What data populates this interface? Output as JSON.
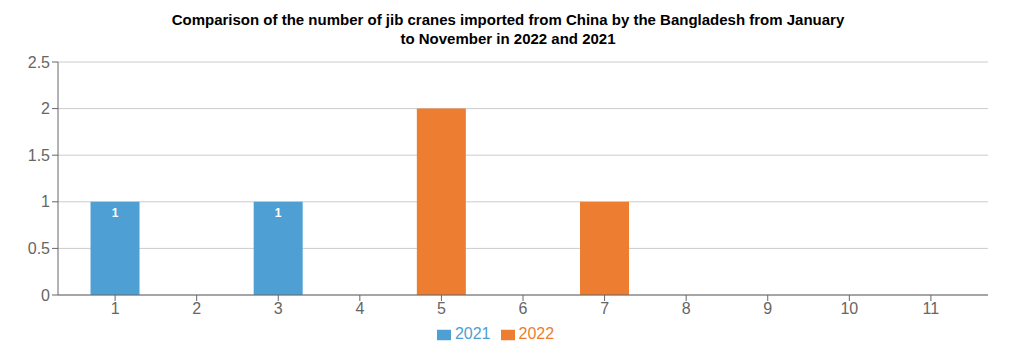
{
  "chart_data": {
    "type": "bar",
    "title": "Comparison of the number of jib cranes imported from China by the Bangladesh from January\nto November in 2022 and 2021",
    "x": [
      1,
      3,
      5,
      7
    ],
    "series": [
      {
        "name": "2021",
        "color": "#4e9fd4",
        "values": [
          1,
          1,
          null,
          null
        ]
      },
      {
        "name": "2022",
        "color": "#ED7D31",
        "values": [
          null,
          null,
          2,
          1
        ]
      }
    ],
    "xlim": [
      0.3,
      11.7
    ],
    "xticks": [
      1,
      2,
      3,
      4,
      5,
      6,
      7,
      8,
      9,
      10,
      11
    ],
    "ylim": [
      0,
      2.5
    ],
    "yticks": [
      0,
      0.5,
      1,
      1.5,
      2,
      2.5
    ],
    "grid": true,
    "data_labels": true
  }
}
